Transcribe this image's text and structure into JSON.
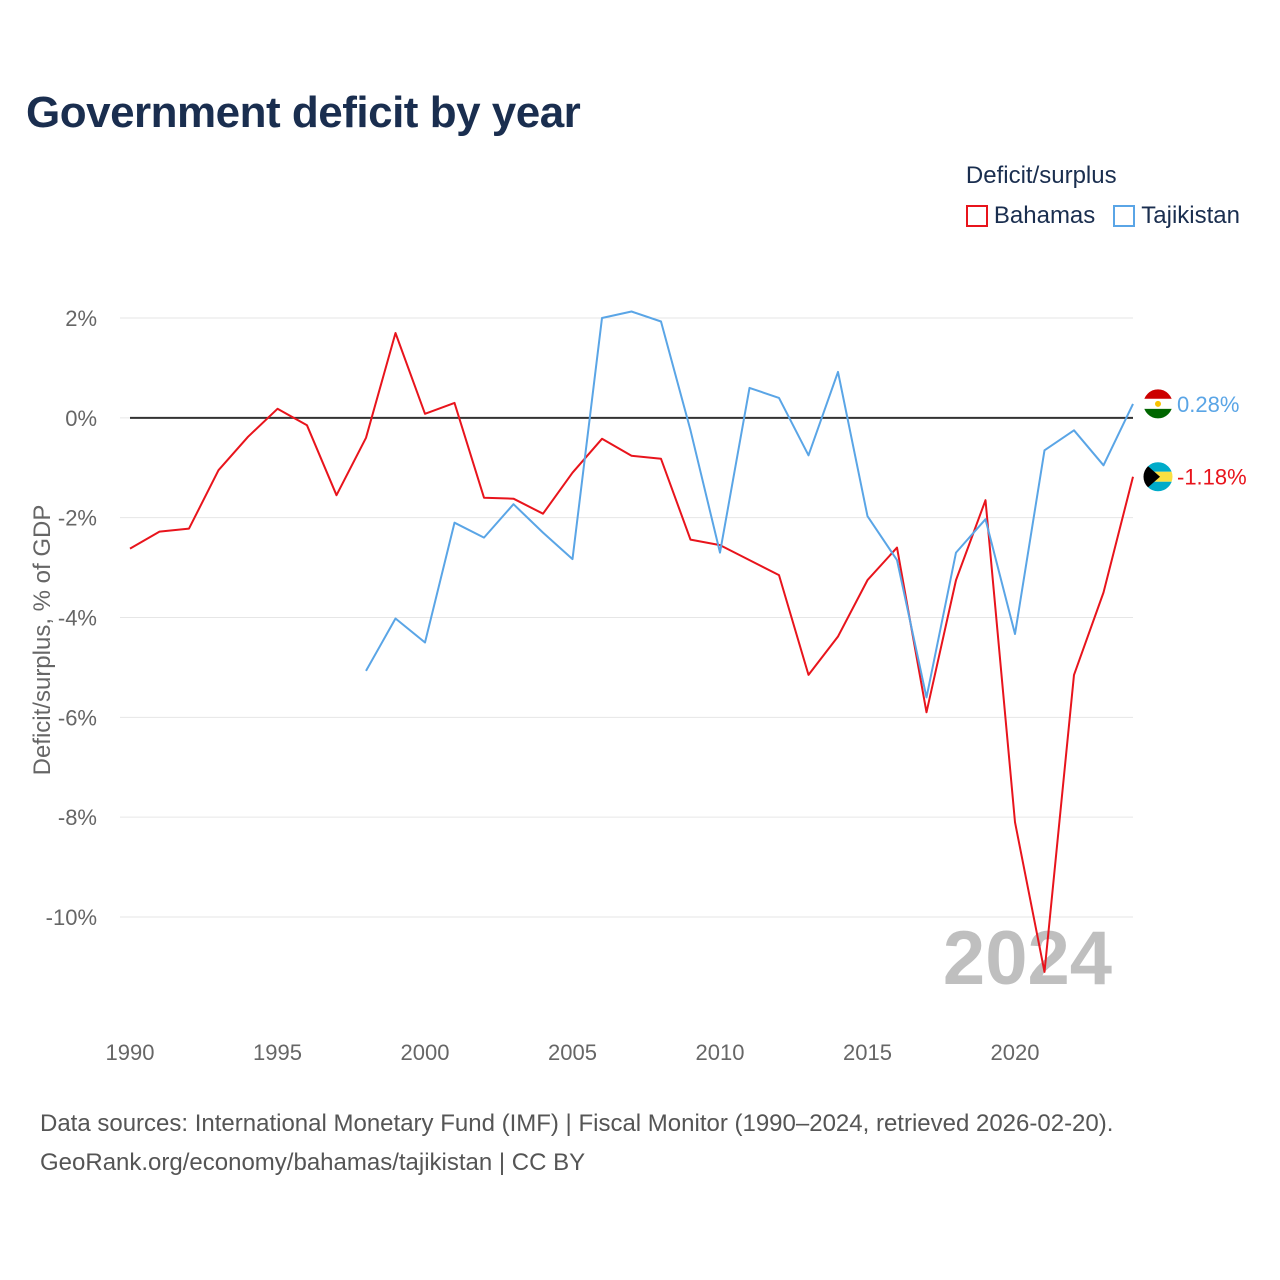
{
  "title": "Government deficit by year",
  "legend": {
    "title": "Deficit/surplus",
    "items": [
      {
        "label": "Bahamas",
        "color": "#e8141c"
      },
      {
        "label": "Tajikistan",
        "color": "#5aa5e6"
      }
    ]
  },
  "footer": {
    "sources": "Data sources: International Monetary Fund (IMF) | Fiscal Monitor (1990–2024, retrieved 2026-02-20).",
    "attribution": "GeoRank.org/economy/bahamas/tajikistan | CC BY"
  },
  "chart_data": {
    "type": "line",
    "title": "Government deficit by year",
    "xlabel": "",
    "ylabel": "Deficit/surplus, % of GDP",
    "watermark": "2024",
    "xlim": [
      1990,
      2024
    ],
    "ylim": [
      -12,
      2.5
    ],
    "y_ticks": [
      2,
      0,
      -2,
      -4,
      -6,
      -8,
      -10
    ],
    "y_tick_labels": [
      "2%",
      "0%",
      "-2%",
      "-4%",
      "-6%",
      "-8%",
      "-10%"
    ],
    "x_ticks": [
      1990,
      1995,
      2000,
      2005,
      2010,
      2015,
      2020
    ],
    "x_tick_labels": [
      "1990",
      "1995",
      "2000",
      "2005",
      "2010",
      "2015",
      "2020"
    ],
    "grid": true,
    "zero_line": true,
    "series": [
      {
        "name": "Bahamas",
        "color": "#e8141c",
        "end_label": "-1.18%",
        "flag": "bahamas",
        "x": [
          1990,
          1991,
          1992,
          1993,
          1994,
          1995,
          1996,
          1997,
          1998,
          1999,
          2000,
          2001,
          2002,
          2003,
          2004,
          2005,
          2006,
          2007,
          2008,
          2009,
          2010,
          2011,
          2012,
          2013,
          2014,
          2015,
          2016,
          2017,
          2018,
          2019,
          2020,
          2021,
          2022,
          2023,
          2024
        ],
        "values": [
          -2.62,
          -2.28,
          -2.22,
          -1.05,
          -0.38,
          0.18,
          -0.15,
          -1.55,
          -0.4,
          1.7,
          0.08,
          0.3,
          -1.6,
          -1.62,
          -1.92,
          -1.1,
          -0.42,
          -0.76,
          -0.82,
          -2.44,
          -2.55,
          -2.85,
          -3.15,
          -5.15,
          -4.38,
          -3.25,
          -2.6,
          -5.9,
          -3.25,
          -1.65,
          -8.1,
          -11.1,
          -5.15,
          -3.5,
          -1.18
        ]
      },
      {
        "name": "Tajikistan",
        "color": "#5aa5e6",
        "end_label": "0.28%",
        "flag": "tajikistan",
        "x": [
          1998,
          1999,
          2000,
          2001,
          2002,
          2003,
          2004,
          2005,
          2006,
          2007,
          2008,
          2009,
          2010,
          2011,
          2012,
          2013,
          2014,
          2015,
          2016,
          2017,
          2018,
          2019,
          2020,
          2021,
          2022,
          2023,
          2024
        ],
        "values": [
          -5.07,
          -4.02,
          -4.5,
          -2.1,
          -2.4,
          -1.73,
          -2.3,
          -2.83,
          2.0,
          2.13,
          1.93,
          -0.25,
          -2.7,
          0.6,
          0.4,
          -0.75,
          0.92,
          -1.97,
          -2.85,
          -5.6,
          -2.7,
          -2.03,
          -4.33,
          -0.65,
          -0.25,
          -0.95,
          0.28
        ]
      }
    ]
  }
}
